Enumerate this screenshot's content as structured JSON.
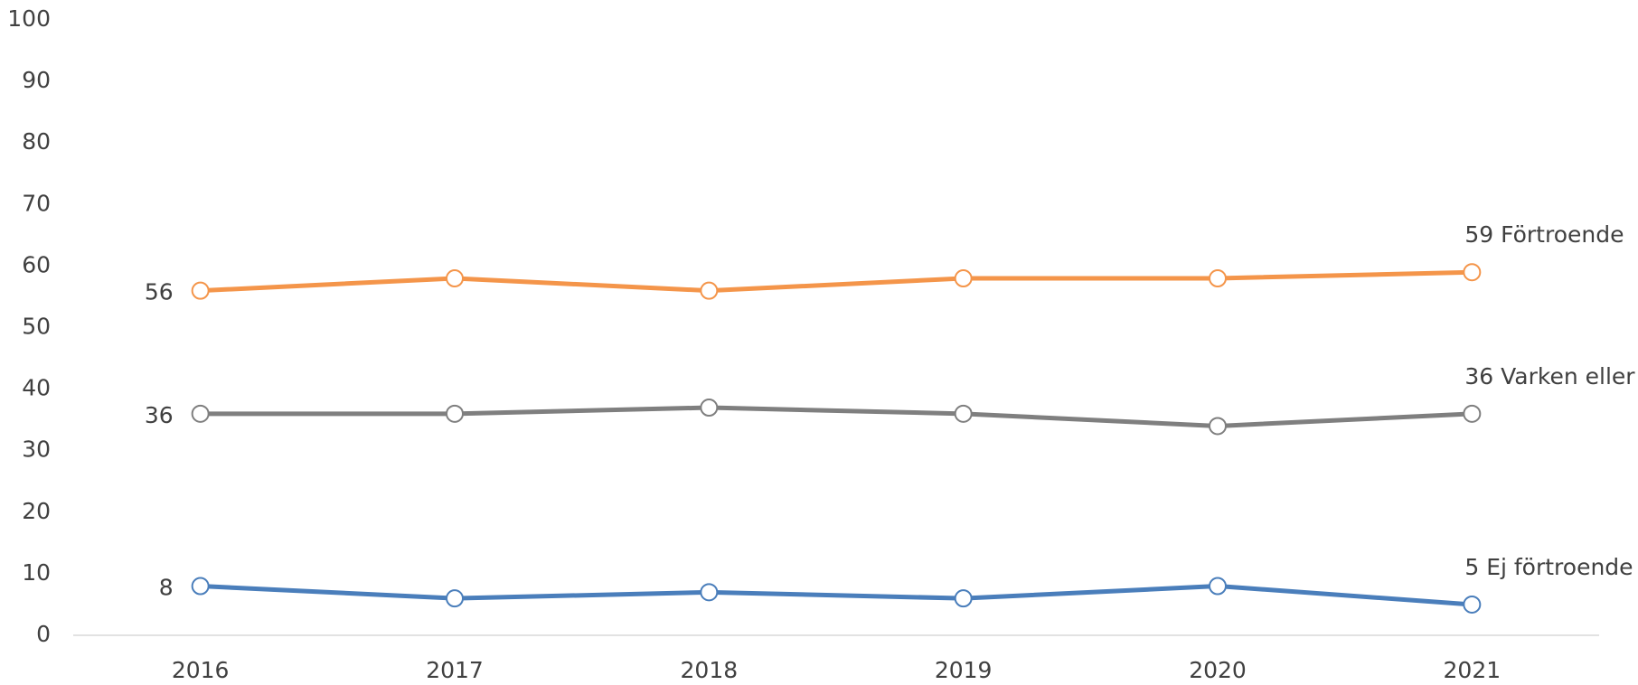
{
  "chart_data": {
    "type": "line",
    "categories": [
      "2016",
      "2017",
      "2018",
      "2019",
      "2020",
      "2021"
    ],
    "series": [
      {
        "name": "Förtroende",
        "color": "#f4954a",
        "values": [
          56,
          58,
          56,
          58,
          58,
          59
        ]
      },
      {
        "name": "Varken eller",
        "color": "#7f7f7f",
        "values": [
          36,
          36,
          37,
          36,
          34,
          36
        ]
      },
      {
        "name": "Ej förtroende",
        "color": "#4a7ebb",
        "values": [
          8,
          6,
          7,
          6,
          8,
          5
        ]
      }
    ],
    "ylim": [
      0,
      100
    ],
    "yticks": [
      0,
      10,
      20,
      30,
      40,
      50,
      60,
      70,
      80,
      90,
      100
    ],
    "grid": false
  }
}
